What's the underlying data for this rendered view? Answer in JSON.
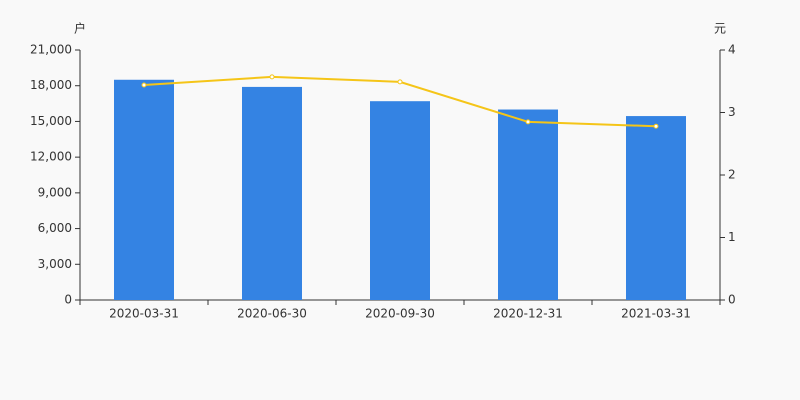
{
  "chart_data": {
    "type": "bar",
    "y_label": "户",
    "y2_label": "元",
    "categories": [
      "2020-03-31",
      "2020-06-30",
      "2020-09-30",
      "2020-12-31",
      "2021-03-31"
    ],
    "series": [
      {
        "type": "bar",
        "color": "#3483e3",
        "values": [
          18500,
          17900,
          16700,
          16000,
          15450
        ]
      },
      {
        "type": "line",
        "axis": "y2",
        "color": "#f5c518",
        "values": [
          3.44,
          3.57,
          3.49,
          2.85,
          2.78
        ]
      }
    ],
    "ylim": [
      0,
      21000
    ],
    "yticks": [
      0,
      {
        "value": 3000,
        "label": "3,000"
      },
      {
        "value": 6000,
        "label": "6,000"
      },
      {
        "value": 9000,
        "label": "9,000"
      },
      {
        "value": 12000,
        "label": "12,000"
      },
      {
        "value": 15000,
        "label": "15,000"
      },
      {
        "value": 18000,
        "label": "18,000"
      },
      {
        "value": 21000,
        "label": "21,000"
      }
    ],
    "y2lim": [
      0,
      4
    ],
    "y2ticks": [
      0,
      1,
      2,
      3,
      4
    ],
    "grid": false
  }
}
